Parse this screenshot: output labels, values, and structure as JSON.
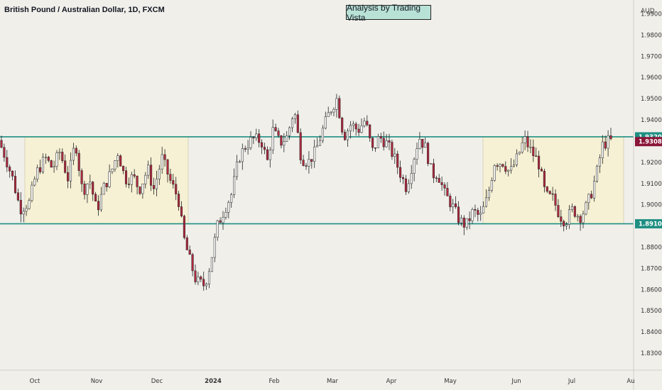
{
  "header": {
    "title": "British Pound / Australian Dollar, 1D, FXCM",
    "annotation": "Analysis by Trading Vista",
    "currency": "AUD"
  },
  "colors": {
    "background": "#f0efea",
    "bull": "#f7f7f7",
    "bear": "#b0283e",
    "wick": "#222222",
    "level": "#1f8f82",
    "range_fill": "#f6f0d4",
    "current_price": "#8a1538"
  },
  "chart_data": {
    "type": "candlestick",
    "title": "British Pound / Australian Dollar, 1D, FXCM",
    "ylabel": "AUD",
    "ylim": [
      1.822,
      1.9965
    ],
    "yticks": [
      "1.99000",
      "1.98000",
      "1.97000",
      "1.96000",
      "1.95000",
      "1.94000",
      "1.93000",
      "1.92000",
      "1.91000",
      "1.90000",
      "1.89000",
      "1.88000",
      "1.87000",
      "1.86000",
      "1.85000",
      "1.84000",
      "1.83000"
    ],
    "xlim": [
      0,
      888
    ],
    "month_ticks": [
      {
        "label": "Oct",
        "x": 49
      },
      {
        "label": "Nov",
        "x": 136
      },
      {
        "label": "Dec",
        "x": 221
      },
      {
        "label": "2024",
        "x": 300,
        "bold": true
      },
      {
        "label": "Feb",
        "x": 386
      },
      {
        "label": "Mar",
        "x": 468
      },
      {
        "label": "Apr",
        "x": 551
      },
      {
        "label": "May",
        "x": 634
      },
      {
        "label": "Jun",
        "x": 727
      },
      {
        "label": "Jul",
        "x": 805
      },
      {
        "label": "Au",
        "x": 888
      }
    ],
    "levels": [
      {
        "value": 1.932,
        "label": "1.93200",
        "color": "#1f8f82"
      },
      {
        "value": 1.891,
        "label": "1.89100",
        "color": "#1f8f82"
      }
    ],
    "current_price": {
      "value": 1.93084,
      "label": "1.93084"
    },
    "ranges": [
      {
        "x0": 35,
        "x1": 265,
        "top": 1.932,
        "bottom": 1.891
      },
      {
        "x0": 680,
        "x1": 878,
        "top": 1.932,
        "bottom": 1.891
      }
    ],
    "anchors": [
      [
        0,
        1.932
      ],
      [
        12,
        1.922
      ],
      [
        22,
        1.912
      ],
      [
        32,
        1.898
      ],
      [
        45,
        1.901
      ],
      [
        55,
        1.915
      ],
      [
        68,
        1.922
      ],
      [
        78,
        1.917
      ],
      [
        88,
        1.925
      ],
      [
        100,
        1.912
      ],
      [
        110,
        1.93
      ],
      [
        120,
        1.906
      ],
      [
        130,
        1.912
      ],
      [
        140,
        1.897
      ],
      [
        150,
        1.908
      ],
      [
        160,
        1.915
      ],
      [
        170,
        1.925
      ],
      [
        180,
        1.912
      ],
      [
        192,
        1.913
      ],
      [
        200,
        1.907
      ],
      [
        212,
        1.917
      ],
      [
        220,
        1.907
      ],
      [
        232,
        1.922
      ],
      [
        245,
        1.91
      ],
      [
        255,
        1.903
      ],
      [
        262,
        1.885
      ],
      [
        270,
        1.875
      ],
      [
        280,
        1.864
      ],
      [
        292,
        1.862
      ],
      [
        300,
        1.872
      ],
      [
        310,
        1.89
      ],
      [
        320,
        1.898
      ],
      [
        330,
        1.905
      ],
      [
        340,
        1.922
      ],
      [
        350,
        1.928
      ],
      [
        360,
        1.931
      ],
      [
        372,
        1.93
      ],
      [
        380,
        1.92
      ],
      [
        388,
        1.935
      ],
      [
        398,
        1.929
      ],
      [
        408,
        1.932
      ],
      [
        418,
        1.945
      ],
      [
        428,
        1.922
      ],
      [
        438,
        1.92
      ],
      [
        448,
        1.925
      ],
      [
        458,
        1.935
      ],
      [
        468,
        1.944
      ],
      [
        478,
        1.95
      ],
      [
        488,
        1.932
      ],
      [
        498,
        1.938
      ],
      [
        508,
        1.935
      ],
      [
        518,
        1.94
      ],
      [
        528,
        1.925
      ],
      [
        538,
        1.932
      ],
      [
        548,
        1.929
      ],
      [
        558,
        1.923
      ],
      [
        566,
        1.916
      ],
      [
        576,
        1.908
      ],
      [
        584,
        1.919
      ],
      [
        594,
        1.932
      ],
      [
        604,
        1.926
      ],
      [
        612,
        1.914
      ],
      [
        620,
        1.915
      ],
      [
        630,
        1.905
      ],
      [
        640,
        1.9
      ],
      [
        650,
        1.893
      ],
      [
        660,
        1.89
      ],
      [
        670,
        1.897
      ],
      [
        680,
        1.894
      ],
      [
        690,
        1.903
      ],
      [
        700,
        1.92
      ],
      [
        712,
        1.92
      ],
      [
        722,
        1.915
      ],
      [
        732,
        1.922
      ],
      [
        742,
        1.931
      ],
      [
        752,
        1.925
      ],
      [
        762,
        1.92
      ],
      [
        772,
        1.904
      ],
      [
        782,
        1.903
      ],
      [
        792,
        1.895
      ],
      [
        800,
        1.892
      ],
      [
        810,
        1.898
      ],
      [
        820,
        1.894
      ],
      [
        828,
        1.898
      ],
      [
        836,
        1.905
      ],
      [
        844,
        1.915
      ],
      [
        852,
        1.928
      ],
      [
        860,
        1.93
      ]
    ],
    "candle_spacing": 3.9,
    "x_start": 2,
    "x_end": 860
  }
}
